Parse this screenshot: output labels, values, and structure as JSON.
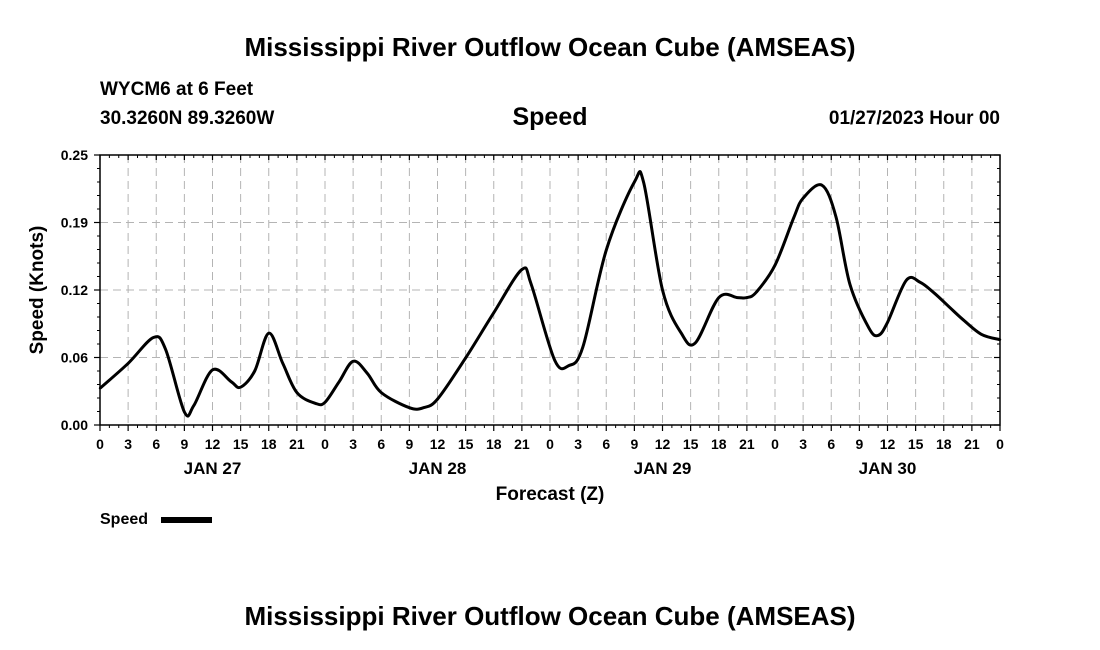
{
  "header": {
    "title": "Mississippi River Outflow Ocean Cube (AMSEAS)",
    "station_line": "WYCM6 at 6 Feet",
    "location_line": "30.3260N  89.3260W",
    "parameter": "Speed",
    "valid_time": "01/27/2023 Hour 00"
  },
  "footer": {
    "title": "Mississippi River Outflow Ocean Cube (AMSEAS)"
  },
  "chart_data": {
    "type": "line",
    "xlabel": "Forecast (Z)",
    "ylabel": "Speed (Knots)",
    "ylim": [
      0,
      0.25
    ],
    "xlim": [
      0,
      96
    ],
    "grid": true,
    "y_ticks": [
      "0.00",
      "0.06",
      "0.12",
      "0.19",
      "0.25"
    ],
    "y_tick_values": [
      0.0,
      0.0625,
      0.125,
      0.1875,
      0.25
    ],
    "x_tick_hours": [
      0,
      3,
      6,
      9,
      12,
      15,
      18,
      21,
      24,
      27,
      30,
      33,
      36,
      39,
      42,
      45,
      48,
      51,
      54,
      57,
      60,
      63,
      66,
      69,
      72,
      75,
      78,
      81,
      84,
      87,
      90,
      93,
      96
    ],
    "x_tick_labels": [
      "0",
      "3",
      "6",
      "9",
      "12",
      "15",
      "18",
      "21",
      "0",
      "3",
      "6",
      "9",
      "12",
      "15",
      "18",
      "21",
      "0",
      "3",
      "6",
      "9",
      "12",
      "15",
      "18",
      "21",
      "0",
      "3",
      "6",
      "9",
      "12",
      "15",
      "18",
      "21",
      "0"
    ],
    "day_labels": [
      {
        "text": "JAN 27",
        "hour": 12
      },
      {
        "text": "JAN 28",
        "hour": 36
      },
      {
        "text": "JAN 29",
        "hour": 60
      },
      {
        "text": "JAN 30",
        "hour": 84
      }
    ],
    "legend": {
      "label": "Speed",
      "position": "bottom-left"
    },
    "series": [
      {
        "name": "Speed",
        "color": "#000000",
        "x": [
          0,
          3,
          5.7,
          7,
          9,
          10,
          12,
          14,
          15,
          16.5,
          18,
          19.5,
          21,
          23,
          24,
          25.5,
          27,
          28.5,
          30,
          33,
          34.5,
          36,
          39,
          42,
          45,
          46,
          48.5,
          50,
          51.5,
          54,
          57,
          58,
          60,
          62,
          63.5,
          66,
          68,
          69,
          70,
          72,
          74,
          75,
          77,
          78.5,
          80,
          82,
          83,
          84,
          86,
          87.5,
          89,
          90.5,
          92,
          94,
          96
        ],
        "y": [
          0.034,
          0.057,
          0.081,
          0.07,
          0.012,
          0.018,
          0.051,
          0.04,
          0.035,
          0.05,
          0.085,
          0.057,
          0.03,
          0.02,
          0.021,
          0.04,
          0.059,
          0.048,
          0.03,
          0.016,
          0.016,
          0.024,
          0.062,
          0.104,
          0.144,
          0.13,
          0.06,
          0.055,
          0.072,
          0.162,
          0.225,
          0.224,
          0.125,
          0.085,
          0.076,
          0.118,
          0.118,
          0.118,
          0.123,
          0.148,
          0.192,
          0.21,
          0.222,
          0.193,
          0.13,
          0.09,
          0.083,
          0.095,
          0.134,
          0.132,
          0.122,
          0.11,
          0.098,
          0.084,
          0.079
        ]
      }
    ]
  }
}
